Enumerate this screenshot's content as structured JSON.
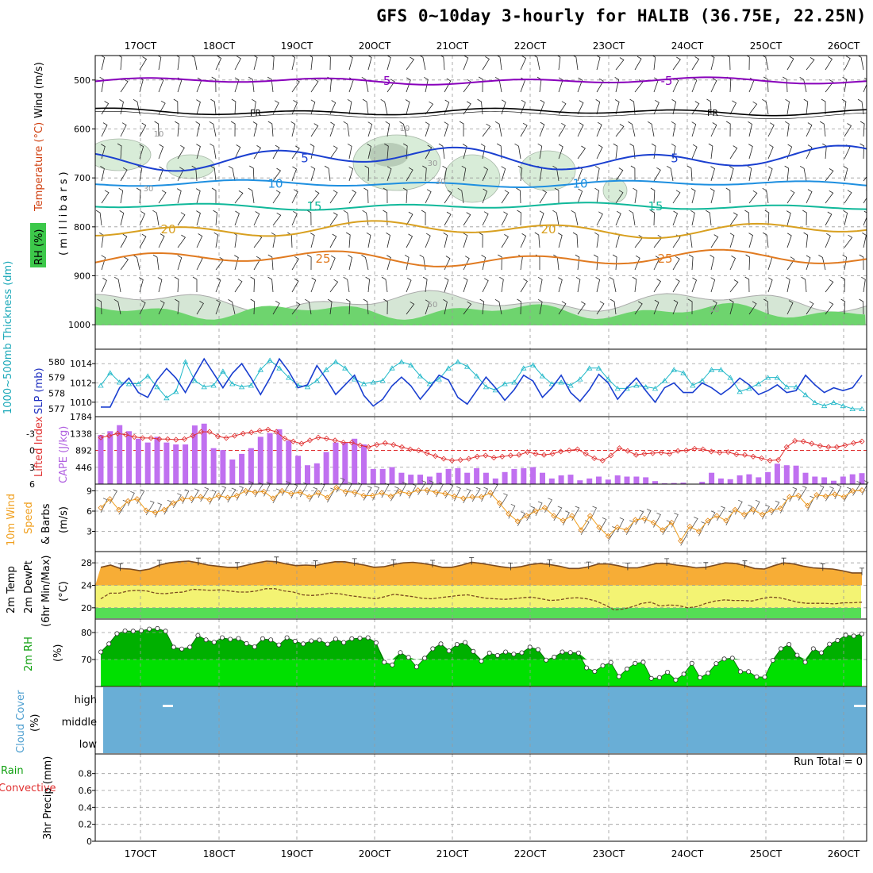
{
  "title": "GFS 0~10day 3-hourly for HALIB (36.75E, 22.25N)",
  "chart_data": [
    {
      "type": "line",
      "panel": "upper-air",
      "x_ticks": [
        "17OCT",
        "18OCT",
        "19OCT",
        "20OCT",
        "21OCT",
        "22OCT",
        "23OCT",
        "24OCT",
        "25OCT",
        "26OCT"
      ],
      "ylabel_parts": [
        "RH (%)",
        "Temperature (°C)",
        "Wind (m/s)",
        "(millibars)"
      ],
      "y_ticks": [
        "500",
        "600",
        "700",
        "800",
        "900",
        "1000"
      ],
      "ylim": [
        450,
        1050
      ],
      "isotherms": [
        {
          "name": "-5",
          "value": -5,
          "p": 502,
          "color": "#8800bb",
          "labels": [
            "-5",
            "-5"
          ]
        },
        {
          "name": "FR",
          "value": 0,
          "p": 565,
          "color": "#000000",
          "labels": [
            "FR",
            "FR"
          ]
        },
        {
          "name": "5",
          "value": 5,
          "p": 660,
          "color": "#1a3fd0",
          "labels": [
            "5",
            "5"
          ]
        },
        {
          "name": "10",
          "value": 10,
          "p": 712,
          "color": "#1e8fe0",
          "labels": [
            "10",
            "10"
          ]
        },
        {
          "name": "15",
          "value": 15,
          "p": 758,
          "color": "#10b89a",
          "labels": [
            "15",
            "15"
          ]
        },
        {
          "name": "20",
          "value": 20,
          "p": 805,
          "color": "#d8a020",
          "labels": [
            "20",
            "20"
          ]
        },
        {
          "name": "25",
          "value": 25,
          "p": 865,
          "color": "#e07a20",
          "labels": [
            "25",
            "25"
          ]
        }
      ],
      "rh_labels": [
        "10",
        "10",
        "30",
        "30",
        "30",
        "50",
        "50"
      ]
    },
    {
      "type": "line",
      "panel": "slp-thickness",
      "ylabel_left": "1000~500mb Thickness (dm)",
      "ylabel_right": "SLP (mb)",
      "left_ticks": [
        "580",
        "579",
        "578",
        "577"
      ],
      "right_ticks": [
        "1014",
        "1012",
        "1010"
      ],
      "slp_ylim": [
        1008.5,
        1015.5
      ],
      "thick_ylim": [
        576.5,
        580.8
      ],
      "slp": [
        1009.5,
        1009.5,
        1011.5,
        1012.5,
        1011.0,
        1010.5,
        1012.3,
        1013.5,
        1012.5,
        1011.0,
        1012.8,
        1014.5,
        1013.0,
        1011.5,
        1013.0,
        1014.0,
        1012.5,
        1010.8,
        1012.5,
        1014.5,
        1013.2,
        1011.5,
        1011.8,
        1013.8,
        1012.4,
        1010.8,
        1011.8,
        1012.8,
        1010.7,
        1009.6,
        1010.3,
        1011.7,
        1012.6,
        1011.7,
        1010.3,
        1011.5,
        1012.8,
        1012.3,
        1010.5,
        1009.8,
        1011.2,
        1012.6,
        1011.5,
        1010.2,
        1011.3,
        1012.8,
        1012.2,
        1010.5,
        1011.5,
        1012.8,
        1011.0,
        1010.1,
        1011.3,
        1012.9,
        1012.0,
        1010.3,
        1011.5,
        1012.5,
        1011.2,
        1010.0,
        1011.5,
        1012.0,
        1011.0,
        1011.0,
        1012.0,
        1011.5,
        1010.8,
        1011.5,
        1012.5,
        1011.8,
        1010.8,
        1011.2,
        1011.8,
        1011.0,
        1011.2,
        1012.8,
        1011.8,
        1011.0,
        1011.5,
        1011.2,
        1011.5,
        1012.8
      ],
      "thickness": [
        578.5,
        579.3,
        578.7,
        578.6,
        578.6,
        579.1,
        578.4,
        577.7,
        578.1,
        580.0,
        578.8,
        578.4,
        578.5,
        579.4,
        578.6,
        578.4,
        578.5,
        579.5,
        580.1,
        579.6,
        579.0,
        578.5,
        578.4,
        578.8,
        579.5,
        580.0,
        579.6,
        578.9,
        578.6,
        578.7,
        578.8,
        579.6,
        580.0,
        579.8,
        579.1,
        578.6,
        578.9,
        579.6,
        580.0,
        579.7,
        579.1,
        578.4,
        578.2,
        578.6,
        578.7,
        579.6,
        579.8,
        579.1,
        578.6,
        578.7,
        578.5,
        578.9,
        579.6,
        579.6,
        578.9,
        578.3,
        578.3,
        578.5,
        578.4,
        578.3,
        578.8,
        579.5,
        579.3,
        578.5,
        578.8,
        579.5,
        579.5,
        579.0,
        578.1,
        578.3,
        578.6,
        579.0,
        579.0,
        578.4,
        578.4,
        577.9,
        577.4,
        577.2,
        577.4,
        577.2,
        577.0,
        577.0
      ]
    },
    {
      "type": "bar",
      "panel": "cape-lifted-index",
      "ylabel_left": "Lifted Index",
      "ylabel_right": "CAPE (J/kg)",
      "left_ticks": [
        "-3",
        "0",
        "3",
        "6"
      ],
      "right_ticks": [
        "1784",
        "1338",
        "892",
        "446"
      ],
      "cape_ylim": [
        0,
        1784
      ],
      "li_ylim": [
        -6,
        6
      ],
      "cape": [
        1300,
        1400,
        1560,
        1400,
        1200,
        1100,
        1250,
        1100,
        1050,
        1050,
        1550,
        1600,
        950,
        900,
        650,
        800,
        950,
        1250,
        1350,
        1450,
        1150,
        750,
        500,
        550,
        850,
        1100,
        1100,
        1200,
        1050,
        400,
        400,
        450,
        300,
        250,
        250,
        200,
        300,
        400,
        420,
        300,
        420,
        300,
        150,
        320,
        400,
        420,
        450,
        300,
        150,
        230,
        250,
        100,
        150,
        200,
        120,
        230,
        200,
        200,
        180,
        80,
        20,
        30,
        40,
        0,
        60,
        300,
        150,
        130,
        230,
        260,
        180,
        320,
        540,
        500,
        490,
        300,
        200,
        180,
        90,
        200,
        260,
        290
      ],
      "lifted_index": [
        -2.3,
        -2.6,
        -3.0,
        -2.8,
        -2.4,
        -2.2,
        -2.2,
        -2.0,
        -2.0,
        -1.9,
        -2.0,
        -2.6,
        -3.3,
        -3.3,
        -2.5,
        -2.2,
        -2.6,
        -3.0,
        -3.2,
        -3.5,
        -3.7,
        -3.3,
        -2.1,
        -1.6,
        -1.2,
        -1.8,
        -2.3,
        -2.1,
        -1.8,
        -1.4,
        -1.4,
        -0.9,
        -0.6,
        -1.0,
        -1.3,
        -1.0,
        -0.6,
        -0.2,
        0.0,
        0.5,
        1.0,
        1.5,
        1.8,
        1.7,
        1.5,
        1.1,
        0.9,
        1.3,
        1.1,
        0.9,
        0.8,
        0.3,
        0.6,
        0.8,
        0.6,
        0.2,
        0.0,
        -0.2,
        0.6,
        1.4,
        1.8,
        0.9,
        -0.4,
        0.1,
        0.8,
        0.6,
        0.5,
        0.4,
        0.6,
        0.1,
        0.0,
        -0.3,
        -0.2,
        0.2,
        0.4,
        0.3,
        0.7,
        0.8,
        1.1,
        1.4,
        1.8,
        1.7,
        -0.6,
        -1.7,
        -1.6,
        -1.2,
        -0.8,
        -0.6,
        -0.6,
        -0.9,
        -1.3,
        -1.6
      ]
    },
    {
      "type": "line",
      "panel": "10m-wind",
      "ylabel_parts": [
        "10m Wind",
        "Speed",
        "& Barbs",
        "(m/s)"
      ],
      "y_ticks": [
        "9",
        "6",
        "3"
      ],
      "ylim": [
        0,
        10
      ],
      "speed": [
        6.5,
        7.8,
        6.2,
        7.5,
        7.8,
        6.1,
        5.8,
        6.2,
        7.2,
        7.8,
        7.9,
        8.1,
        7.7,
        8.3,
        8.0,
        8.3,
        9.0,
        8.8,
        8.9,
        7.9,
        9.0,
        8.6,
        8.8,
        8.1,
        8.7,
        8.0,
        9.5,
        8.9,
        8.8,
        8.3,
        8.3,
        8.7,
        8.2,
        8.9,
        8.6,
        9.1,
        9.1,
        8.8,
        8.6,
        8.2,
        7.9,
        8.1,
        8.1,
        8.7,
        7.2,
        5.6,
        4.5,
        5.3,
        6.0,
        6.5,
        5.3,
        4.6,
        5.3,
        3.2,
        5.3,
        3.6,
        2.3,
        3.6,
        3.2,
        4.7,
        4.9,
        4.3,
        3.2,
        4.3,
        1.6,
        3.7,
        3.0,
        4.6,
        5.3,
        4.6,
        6.2,
        5.5,
        6.2,
        5.5,
        6.1,
        6.4,
        8.1,
        8.3,
        6.8,
        8.4,
        8.2,
        8.5,
        8.1,
        9.0,
        9.1
      ]
    },
    {
      "type": "area",
      "panel": "2m-temp",
      "ylabel_parts": [
        "2m Temp",
        "2m DewPt",
        "(6hr Min/Max)",
        "(°C)"
      ],
      "y_ticks": [
        "28",
        "24",
        "20"
      ],
      "ylim": [
        18,
        30
      ],
      "temp": [
        27.2,
        27.6,
        27.0,
        26.9,
        26.6,
        26.9,
        27.6,
        28.0,
        28.2,
        28.3,
        28.0,
        27.6,
        27.4,
        27.2,
        27.2,
        27.6,
        28.0,
        28.3,
        28.2,
        27.8,
        27.5,
        27.6,
        27.5,
        27.9,
        28.2,
        28.2,
        27.9,
        27.6,
        27.2,
        27.3,
        27.7,
        28.0,
        28.1,
        27.9,
        27.6,
        27.2,
        27.2,
        27.6,
        28.1,
        27.9,
        27.6,
        27.3,
        27.1,
        27.3,
        27.7,
        27.9,
        27.7,
        27.4,
        27.0,
        27.0,
        27.3,
        27.8,
        27.8,
        27.5,
        27.1,
        27.1,
        27.5,
        27.9,
        27.9,
        27.6,
        27.4,
        27.1,
        27.2,
        27.6,
        28.0,
        27.9,
        27.5,
        27.0,
        26.9,
        27.5,
        28.0,
        27.8,
        27.4,
        27.1,
        27.0,
        26.9,
        26.6,
        26.2,
        26.2
      ],
      "dewpoint": [
        21.6,
        22.6,
        22.6,
        23.0,
        23.1,
        23.0,
        22.6,
        22.5,
        22.7,
        22.8,
        23.3,
        23.2,
        23.1,
        23.2,
        23.0,
        22.8,
        22.8,
        23.0,
        23.4,
        23.4,
        23.0,
        22.8,
        22.3,
        22.2,
        22.3,
        22.6,
        22.5,
        22.2,
        22.0,
        21.8,
        21.6,
        22.0,
        22.4,
        22.2,
        22.0,
        21.7,
        21.6,
        21.8,
        22.0,
        22.2,
        22.3,
        22.0,
        21.7,
        21.6,
        21.5,
        21.6,
        21.8,
        21.9,
        21.6,
        21.3,
        21.4,
        21.7,
        21.8,
        21.6,
        21.2,
        20.5,
        19.6,
        19.8,
        20.2,
        20.8,
        21.0,
        20.3,
        20.5,
        20.4,
        20.0,
        20.2,
        20.8,
        21.2,
        21.4,
        21.3,
        21.3,
        21.2,
        21.6,
        21.9,
        21.8,
        21.4,
        21.0,
        20.8,
        20.8,
        20.8,
        20.7,
        20.9,
        20.9,
        21.0
      ]
    },
    {
      "type": "area",
      "panel": "2m-rh",
      "ylabel_parts": [
        "2m RH",
        "(%)"
      ],
      "y_ticks": [
        "80",
        "70"
      ],
      "ylim": [
        60,
        85
      ],
      "rh": [
        72.8,
        75.8,
        79.6,
        80.6,
        80.5,
        80.7,
        81.3,
        81.5,
        80.5,
        74.6,
        73.9,
        74.6,
        78.9,
        77.3,
        76.4,
        78.1,
        77.5,
        77.8,
        75.9,
        74.7,
        77.7,
        77.3,
        75.4,
        78.1,
        76.8,
        75.8,
        76.9,
        77.2,
        75.7,
        77.6,
        76.3,
        77.7,
        77.9,
        78.1,
        76.2,
        69.0,
        68.0,
        72.6,
        70.8,
        67.3,
        70.5,
        74.0,
        75.8,
        73.2,
        75.6,
        76.3,
        73.0,
        69.4,
        72.4,
        71.5,
        72.8,
        72.0,
        72.5,
        74.6,
        73.7,
        69.8,
        70.9,
        72.8,
        72.6,
        72.4,
        66.9,
        65.6,
        67.7,
        68.9,
        63.7,
        66.5,
        68.6,
        69.0,
        63.0,
        63.3,
        65.3,
        62.4,
        64.6,
        68.6,
        63.3,
        64.9,
        68.5,
        70.2,
        70.5,
        65.5,
        65.5,
        63.6,
        63.5,
        69.7,
        74.0,
        75.6,
        71.6,
        69.0,
        74.0,
        72.5,
        75.7,
        77.1,
        79.0,
        78.7,
        79.5
      ]
    },
    {
      "type": "heatmap",
      "panel": "cloud-cover",
      "ylabel_parts": [
        "Cloud Cover",
        "(%)"
      ],
      "y_ticks": [
        "high",
        "middle",
        "low"
      ],
      "high": [
        0,
        0,
        0,
        0,
        0,
        0,
        0,
        0,
        0,
        0,
        0,
        0,
        0,
        0,
        0,
        0,
        0,
        0,
        0,
        0,
        0,
        0,
        0,
        0,
        0,
        0,
        0,
        0,
        0,
        0,
        0,
        0,
        0,
        0,
        0,
        0,
        0,
        0,
        0,
        0,
        0,
        0,
        0,
        0,
        0,
        0,
        0,
        0,
        0,
        0,
        0,
        0,
        0,
        0,
        0,
        0,
        0,
        0,
        0,
        0,
        0,
        0,
        0,
        0,
        0,
        0,
        0,
        0,
        0,
        0,
        0,
        0,
        0,
        0,
        0,
        0,
        0,
        0,
        0,
        0,
        0
      ],
      "mid": [
        0,
        0,
        0,
        0,
        0,
        0,
        0,
        0,
        0,
        0,
        0,
        0,
        0,
        0,
        0,
        0,
        0,
        0,
        0,
        0,
        0,
        0,
        0,
        0,
        0,
        0,
        0,
        0,
        0,
        0,
        0,
        0,
        0,
        0,
        0,
        0,
        0,
        0,
        0,
        0,
        0,
        0,
        0,
        0,
        0,
        0,
        0,
        0,
        0,
        0,
        0,
        0,
        0,
        0,
        0,
        0,
        0,
        0,
        0,
        0,
        0,
        0,
        0,
        0,
        0,
        0,
        0,
        0,
        0,
        0,
        0,
        0,
        0,
        0,
        0,
        0,
        0,
        0,
        0,
        0,
        0
      ],
      "low": [
        0,
        0,
        0,
        0,
        0,
        0,
        0,
        0,
        0,
        0,
        0,
        0,
        0,
        0,
        0,
        0,
        0,
        0,
        0,
        0,
        0,
        0,
        0,
        0,
        0,
        0,
        0,
        0,
        0,
        0,
        0,
        0,
        0,
        0,
        0,
        0,
        0,
        0,
        0,
        0,
        0,
        0,
        0,
        0,
        0,
        0,
        0,
        0,
        0,
        0,
        0,
        0,
        0,
        0,
        0,
        0,
        0,
        0,
        0,
        0,
        0,
        0,
        0,
        0,
        0,
        0,
        0,
        0,
        0,
        0,
        0,
        0,
        0,
        0,
        0,
        0,
        0,
        0,
        0,
        0,
        0
      ]
    },
    {
      "type": "bar",
      "panel": "3hr-precip",
      "ylabel_parts": [
        "Total / Rain",
        "Convective",
        "3hr Precip (mm)"
      ],
      "y_ticks": [
        "0.8",
        "0.6",
        "0.4",
        "0.2",
        "0"
      ],
      "ylim": [
        0,
        0.9
      ],
      "run_total_text": "Run Total = 0",
      "precip": []
    }
  ]
}
